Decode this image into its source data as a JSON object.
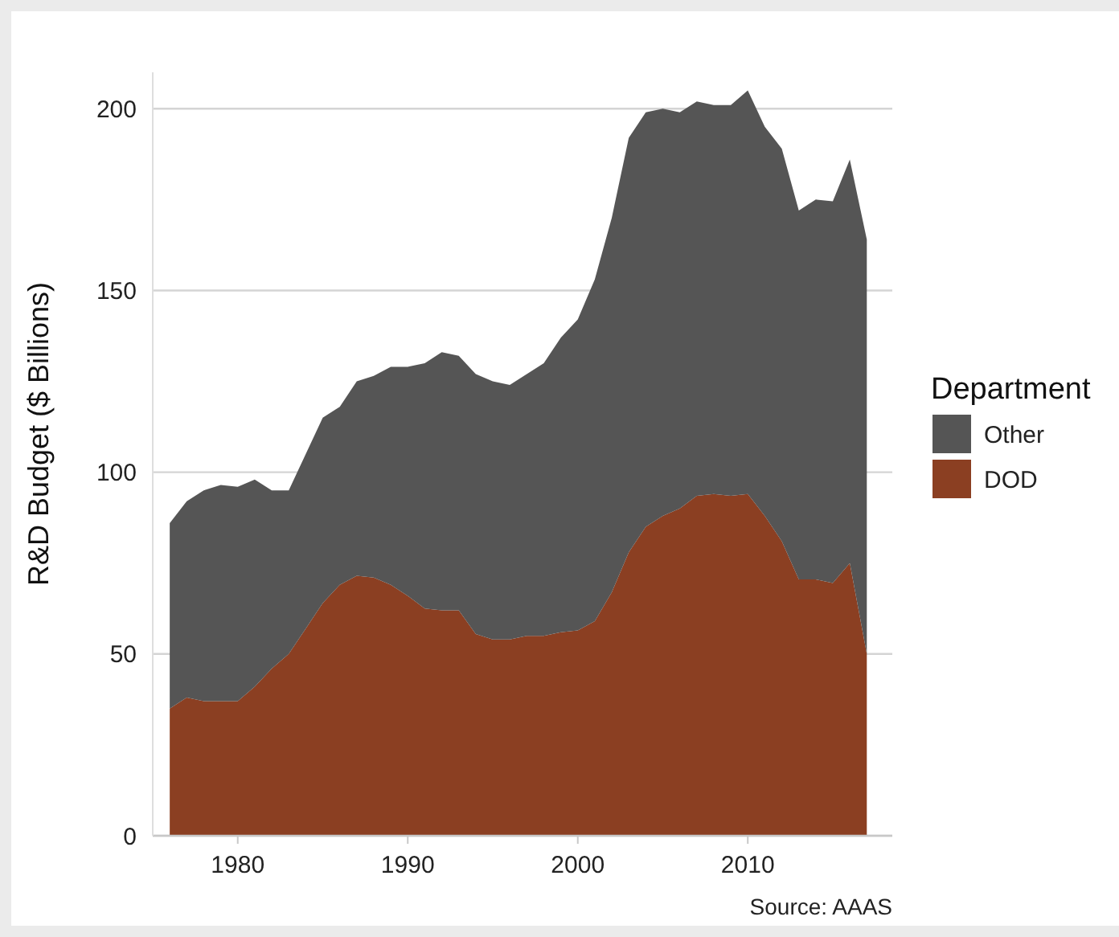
{
  "chart_data": {
    "type": "area",
    "stacked": true,
    "ylabel": "R&D Budget ($ Billions)",
    "legend_title": "Department",
    "legend": "right",
    "grid": "y",
    "x": [
      1976,
      1977,
      1978,
      1979,
      1980,
      1981,
      1982,
      1983,
      1984,
      1985,
      1986,
      1987,
      1988,
      1989,
      1990,
      1991,
      1992,
      1993,
      1994,
      1995,
      1996,
      1997,
      1998,
      1999,
      2000,
      2001,
      2002,
      2003,
      2004,
      2005,
      2006,
      2007,
      2008,
      2009,
      2010,
      2011,
      2012,
      2013,
      2014,
      2015,
      2016,
      2017
    ],
    "series": [
      {
        "name": "DOD",
        "color": "#8b3f22",
        "values": [
          35,
          38,
          37,
          37,
          37,
          41,
          46,
          50,
          57,
          64,
          69,
          71.5,
          71,
          69,
          66,
          62.5,
          62,
          62,
          55.5,
          54,
          54,
          55,
          55,
          56,
          56.5,
          59,
          67,
          78,
          85,
          88,
          90,
          93.5,
          94,
          93.5,
          94,
          88,
          81,
          70.5,
          70.5,
          69.5,
          75,
          50
        ]
      },
      {
        "name": "Other",
        "color": "#555555",
        "values": [
          51,
          54,
          58,
          59.5,
          59,
          57,
          49,
          45,
          48,
          51,
          49,
          53.5,
          55.5,
          60,
          63,
          67.5,
          71,
          70,
          71.5,
          71,
          70,
          72,
          75,
          81,
          85.5,
          94,
          103,
          114,
          114,
          112,
          109,
          108.5,
          107,
          107.5,
          111,
          107,
          108,
          101.5,
          104.5,
          105,
          111,
          114
        ]
      }
    ],
    "xlim": [
      1975,
      2018.5
    ],
    "xticks": [
      1980,
      1990,
      2000,
      2010
    ],
    "ylim": [
      0,
      210
    ],
    "yticks": [
      0,
      50,
      100,
      150,
      200
    ],
    "annotations": [
      "Source: AAAS"
    ]
  }
}
